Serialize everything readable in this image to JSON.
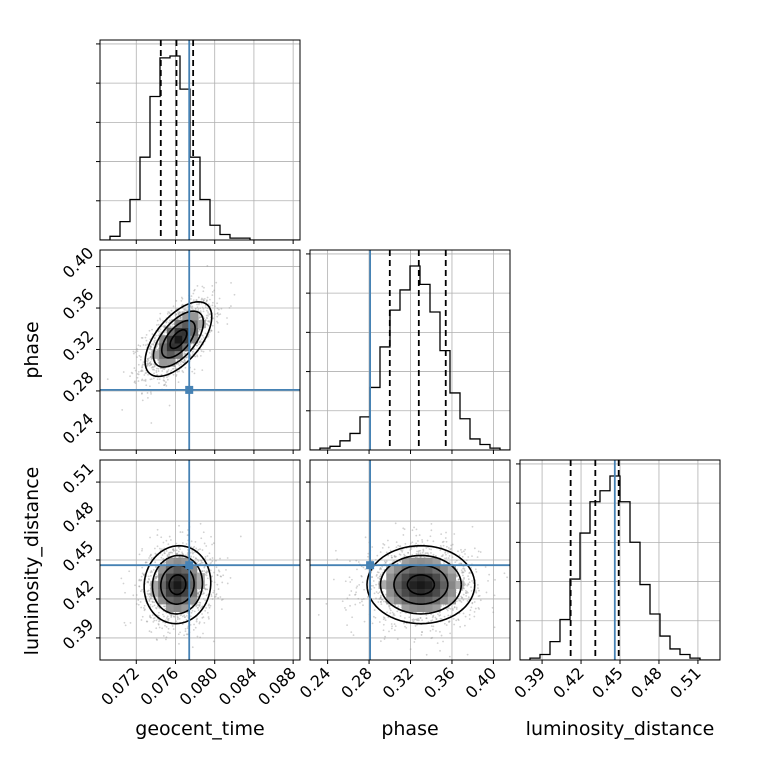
{
  "colors": {
    "truth": "#4682b4",
    "hist": "#000000",
    "quantile": "#000000",
    "grid": "#b0b0b0",
    "scatter": "#9a9a9a"
  },
  "chart_data": {
    "type": "corner",
    "parameters": [
      "geocent_time",
      "phase",
      "luminosity_distance"
    ],
    "axes": {
      "geocent_time": {
        "label": "geocent_time",
        "range": [
          0.0683,
          0.0887
        ],
        "ticks": [
          0.072,
          0.076,
          0.08,
          0.084,
          0.088
        ],
        "tick_labels": [
          "0.072",
          "0.076",
          "0.080",
          "0.084",
          "0.088"
        ],
        "truth": 0.0774,
        "quantiles": [
          0.0745,
          0.0761,
          0.0778
        ]
      },
      "phase": {
        "label": "phase",
        "range": [
          0.223,
          0.416
        ],
        "ticks": [
          0.24,
          0.28,
          0.32,
          0.36,
          0.4
        ],
        "tick_labels": [
          "0.24",
          "0.28",
          "0.32",
          "0.36",
          "0.40"
        ],
        "truth": 0.281,
        "quantiles": [
          0.3,
          0.328,
          0.354
        ]
      },
      "luminosity_distance": {
        "label": "luminosity_distance",
        "range": [
          0.373,
          0.527
        ],
        "ticks": [
          0.39,
          0.42,
          0.45,
          0.48,
          0.51
        ],
        "tick_labels": [
          "0.39",
          "0.42",
          "0.45",
          "0.48",
          "0.51"
        ],
        "truth": 0.446,
        "quantiles": [
          0.412,
          0.431,
          0.449
        ]
      }
    },
    "histograms": {
      "geocent_time": {
        "bin_start": 0.0683,
        "bin_width": 0.00102,
        "counts": [
          0,
          2,
          10,
          22,
          45,
          78,
          99,
          100,
          82,
          45,
          22,
          8,
          3,
          1,
          1,
          0,
          0,
          0,
          0,
          0
        ]
      },
      "phase": {
        "bin_start": 0.223,
        "bin_width": 0.00965,
        "counts": [
          0,
          1,
          2,
          5,
          9,
          18,
          34,
          56,
          76,
          87,
          100,
          90,
          75,
          54,
          31,
          17,
          6,
          3,
          1,
          0
        ]
      },
      "luminosity_distance": {
        "bin_start": 0.373,
        "bin_width": 0.0077,
        "counts": [
          0,
          1,
          3,
          10,
          22,
          44,
          69,
          86,
          92,
          100,
          86,
          64,
          41,
          25,
          13,
          6,
          3,
          1,
          0,
          0
        ]
      }
    },
    "pairs": [
      {
        "x": "geocent_time",
        "y": "phase",
        "mean": [
          0.0763,
          0.33
        ],
        "sd": [
          0.0017,
          0.018
        ],
        "rho": 0.6
      },
      {
        "x": "geocent_time",
        "y": "luminosity_distance",
        "mean": [
          0.0762,
          0.431
        ],
        "sd": [
          0.0017,
          0.015
        ],
        "rho": 0.05
      },
      {
        "x": "phase",
        "y": "luminosity_distance",
        "mean": [
          0.33,
          0.431
        ],
        "sd": [
          0.026,
          0.015
        ],
        "rho": 0.0
      }
    ],
    "contour_levels_sigma": [
      0.5,
      1.0,
      1.5,
      2.0
    ],
    "grid": true
  }
}
